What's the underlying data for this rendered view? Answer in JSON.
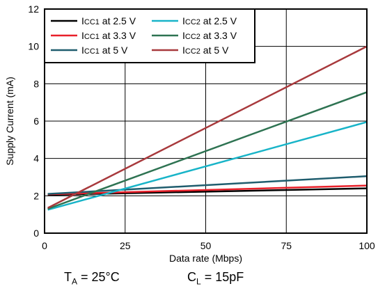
{
  "chart_data": {
    "type": "line",
    "xlabel": "Data rate (Mbps)",
    "ylabel": "Supply Current (mA)",
    "xlim": [
      0,
      100
    ],
    "ylim": [
      0,
      12
    ],
    "xticks": [
      "0",
      "25",
      "50",
      "75",
      "100"
    ],
    "yticks": [
      "0",
      "2",
      "4",
      "6",
      "8",
      "10",
      "12"
    ],
    "grid": true,
    "legend_position": "top-left",
    "series": [
      {
        "name": "ICC1 at 2.5 V",
        "label_main": "I",
        "label_sub": "CC1",
        "label_rest": " at 2.5 V",
        "color": "#000000",
        "x": [
          1,
          100
        ],
        "y": [
          2.05,
          2.4
        ]
      },
      {
        "name": "ICC1 at 3.3 V",
        "label_main": "I",
        "label_sub": "CC1",
        "label_rest": " at 3.3 V",
        "color": "#e8202a",
        "x": [
          1,
          100
        ],
        "y": [
          2.08,
          2.55
        ]
      },
      {
        "name": "ICC1 at 5 V",
        "label_main": "I",
        "label_sub": "CC1",
        "label_rest": " at 5 V",
        "color": "#1f5d6e",
        "x": [
          1,
          100
        ],
        "y": [
          2.1,
          3.05
        ]
      },
      {
        "name": "ICC2 at 2.5 V",
        "label_main": "I",
        "label_sub": "CC2",
        "label_rest": " at 2.5 V",
        "color": "#18b4c8",
        "x": [
          1,
          100
        ],
        "y": [
          1.25,
          5.95
        ]
      },
      {
        "name": "ICC2 at 3.3 V",
        "label_main": "I",
        "label_sub": "CC2",
        "label_rest": " at 3.3 V",
        "color": "#2e7352",
        "x": [
          1,
          100
        ],
        "y": [
          1.3,
          7.55
        ]
      },
      {
        "name": "ICC2 at 5 V",
        "label_main": "I",
        "label_sub": "CC2",
        "label_rest": " at 5 V",
        "color": "#a8393c",
        "x": [
          1,
          100
        ],
        "y": [
          1.35,
          10.0
        ]
      }
    ]
  },
  "conditions": {
    "temp_main": "T",
    "temp_sub": "A",
    "temp_rest": " = 25°C",
    "load_main": "C",
    "load_sub": "L",
    "load_rest": " = 15pF"
  }
}
